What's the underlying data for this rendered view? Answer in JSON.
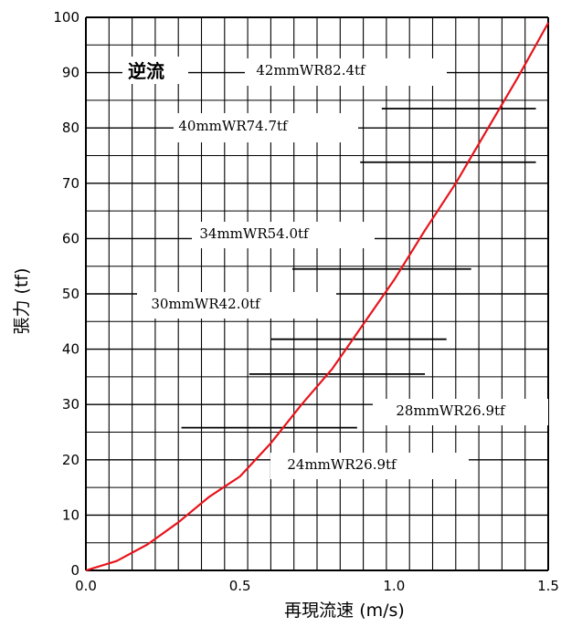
{
  "chart_data": {
    "type": "line",
    "title": "",
    "corner_label": "逆流",
    "xlabel": "再現流速 (m/s)",
    "ylabel": "張力 (tf)",
    "xlim": [
      0,
      1.5
    ],
    "ylim": [
      0,
      100
    ],
    "x_ticks": [
      "0.0",
      "0.5",
      "1.0",
      "1.5"
    ],
    "y_ticks": [
      "0",
      "10",
      "20",
      "30",
      "40",
      "50",
      "60",
      "70",
      "80",
      "90",
      "100"
    ],
    "grid": true,
    "series": [
      {
        "color": "#e8141b",
        "x": [
          0.0,
          0.1,
          0.2,
          0.3,
          0.4,
          0.5,
          0.6,
          0.7,
          0.8,
          0.9,
          1.0,
          1.1,
          1.2,
          1.3,
          1.4,
          1.5
        ],
        "y": [
          0.0,
          1.7,
          4.7,
          8.7,
          13.3,
          17.0,
          23.0,
          30.0,
          36.5,
          44.5,
          52.5,
          61.5,
          70.0,
          79.5,
          89.0,
          99.0
        ]
      }
    ],
    "reference_lines": [
      {
        "label": "42mmWR82.4tf",
        "y": 83.5,
        "x_start": 0.96,
        "x_end": 1.46
      },
      {
        "label": "40mmWR74.7tf",
        "y": 73.8,
        "x_start": 0.89,
        "x_end": 1.46
      },
      {
        "label": "34mmWR54.0tf",
        "y": 54.5,
        "x_start": 0.67,
        "x_end": 1.25
      },
      {
        "label": "30mmWR42.0tf",
        "y": 41.8,
        "x_start": 0.6,
        "x_end": 1.17
      },
      {
        "label": "28mmWR26.9tf",
        "y": 35.5,
        "x_start": 0.53,
        "x_end": 1.1
      },
      {
        "label": "24mmWR26.9tf",
        "y": 25.8,
        "x_start": 0.31,
        "x_end": 0.88
      }
    ]
  }
}
